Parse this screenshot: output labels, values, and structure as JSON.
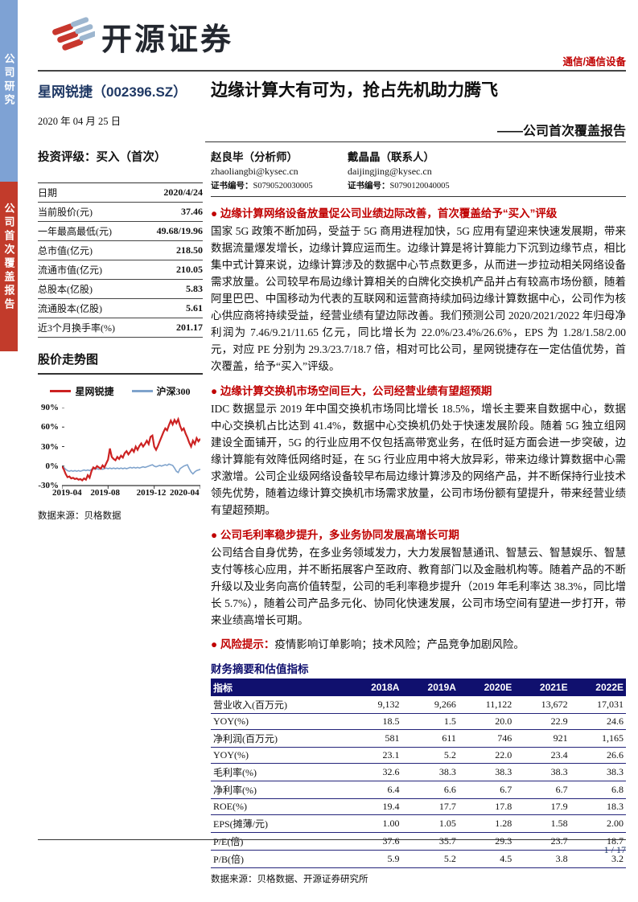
{
  "meta": {
    "sector": "通信/通信设备",
    "page": "1 / 17"
  },
  "sidebar": {
    "top": "公司研究",
    "bottom": "公司首次覆盖报告"
  },
  "logo": {
    "text": "开源证券"
  },
  "header": {
    "company": "星网锐捷（002396.SZ）",
    "date": "2020 年 04 月 25 日",
    "title": "边缘计算大有可为，抢占先机助力腾飞",
    "subtitle": "——公司首次覆盖报告"
  },
  "left": {
    "rating": "投资评级：买入（首次）",
    "stats": [
      {
        "label": "日期",
        "value": "2020/4/24"
      },
      {
        "label": "当前股价(元)",
        "value": "37.46"
      },
      {
        "label": "一年最高最低(元)",
        "value": "49.68/19.96"
      },
      {
        "label": "总市值(亿元)",
        "value": "218.50"
      },
      {
        "label": "流通市值(亿元)",
        "value": "210.05"
      },
      {
        "label": "总股本(亿股)",
        "value": "5.83"
      },
      {
        "label": "流通股本(亿股)",
        "value": "5.61"
      },
      {
        "label": "近3个月换手率(%)",
        "value": "201.17"
      }
    ],
    "chart_title": "股价走势图",
    "chart_source": "数据来源：贝格数据"
  },
  "analysts": [
    {
      "name": "赵良毕（分析师）",
      "email": "zhaoliangbi@kysec.cn",
      "cert_label": "证书编号：",
      "cert": "S0790520030005"
    },
    {
      "name": "戴晶晶（联系人）",
      "email": "daijingjing@kysec.cn",
      "cert_label": "证书编号：",
      "cert": "S0790120040005"
    }
  ],
  "sections": [
    {
      "heading": "● 边缘计算网络设备放量促公司业绩边际改善，首次覆盖给予“买入”评级",
      "body": "国家 5G 政策不断加码，受益于 5G 商用进程加快，5G 应用有望迎来快速发展期，带来数据流量爆发增长，边缘计算应运而生。边缘计算是将计算能力下沉到边缘节点，相比集中式计算来说，边缘计算涉及的数据中心节点数更多，从而进一步拉动相关网络设备需求放量。公司较早布局边缘计算相关的白牌化交换机产品并占有较高市场份额，随着阿里巴巴、中国移动为代表的互联网和运营商持续加码边缘计算数据中心，公司作为核心供应商将持续受益，经营业绩有望边际改善。我们预测公司 2020/2021/2022 年归母净利润为 7.46/9.21/11.65 亿元，同比增长为 22.0%/23.4%/26.6%，EPS 为 1.28/1.58/2.00 元，对应 PE 分别为 29.3/23.7/18.7 倍，相对可比公司，星网锐捷存在一定估值优势，首次覆盖，给予“买入”评级。"
    },
    {
      "heading": "● 边缘计算交换机市场空间巨大，公司经营业绩有望超预期",
      "body": "IDC 数据显示 2019 年中国交换机市场同比增长 18.5%，增长主要来自数据中心，数据中心交换机占比达到 41.4%，数据中心交换机仍处于快速发展阶段。随着 5G 独立组网建设全面铺开，5G 的行业应用不仅包括高带宽业务，在低时延方面会进一步突破，边缘计算能有效降低网络时延，在 5G 行业应用中将大放异彩，带来边缘计算数据中心需求激增。公司企业级网络设备较早布局边缘计算涉及的网络产品，并不断保持行业技术领先优势，随着边缘计算交换机市场需求放量，公司市场份额有望提升，带来经营业绩有望超预期。"
    },
    {
      "heading": "● 公司毛利率稳步提升，多业务协同发展高增长可期",
      "body": "公司结合自身优势，在多业务领域发力，大力发展智慧通讯、智慧云、智慧娱乐、智慧支付等核心应用，并不断拓展客户至政府、教育部门以及金融机构等。随着产品的不断升级以及业务向高价值转型，公司的毛利率稳步提升（2019 年毛利率达 38.3%，同比增长 5.7%），随着公司产品多元化、协同化快速发展，公司市场空间有望进一步打开，带来业绩高增长可期。"
    }
  ],
  "risk": {
    "label": "● 风险提示：",
    "text": "疫情影响订单影响；技术风险；产品竞争加剧风险。"
  },
  "fin": {
    "title": "财务摘要和估值指标",
    "headers": [
      "指标",
      "2018A",
      "2019A",
      "2020E",
      "2021E",
      "2022E"
    ],
    "rows": [
      [
        "营业收入(百万元)",
        "9,132",
        "9,266",
        "11,122",
        "13,672",
        "17,031"
      ],
      [
        "YOY(%)",
        "18.5",
        "1.5",
        "20.0",
        "22.9",
        "24.6"
      ],
      [
        "净利润(百万元)",
        "581",
        "611",
        "746",
        "921",
        "1,165"
      ],
      [
        "YOY(%)",
        "23.1",
        "5.2",
        "22.0",
        "23.4",
        "26.6"
      ],
      [
        "毛利率(%)",
        "32.6",
        "38.3",
        "38.3",
        "38.3",
        "38.3"
      ],
      [
        "净利率(%)",
        "6.4",
        "6.6",
        "6.7",
        "6.7",
        "6.8"
      ],
      [
        "ROE(%)",
        "19.4",
        "17.7",
        "17.8",
        "17.9",
        "18.3"
      ],
      [
        "EPS(摊薄/元)",
        "1.00",
        "1.05",
        "1.28",
        "1.58",
        "2.00"
      ],
      [
        "P/E(倍)",
        "37.6",
        "35.7",
        "29.3",
        "23.7",
        "18.7"
      ],
      [
        "P/B(倍)",
        "5.9",
        "5.2",
        "4.5",
        "3.8",
        "3.2"
      ]
    ],
    "source": "数据来源：贝格数据、开源证券研究所"
  },
  "chart_data": {
    "type": "line",
    "title": "股价走势图",
    "x_ticks": [
      "2019-04",
      "2019-08",
      "2019-12",
      "2020-04"
    ],
    "y_ticks": [
      "90%",
      "60%",
      "30%",
      "0%",
      "-30%"
    ],
    "ylim": [
      -30,
      90
    ],
    "grid": false,
    "legend_position": "top",
    "source": "贝格数据",
    "series": [
      {
        "name": "星网锐捷",
        "color": "#CC2222",
        "values": [
          0,
          -5,
          -12,
          -17,
          -16,
          -19,
          -18,
          -20,
          -19,
          -21,
          -20,
          -22,
          -19,
          -21,
          -14,
          -18,
          -8,
          -2,
          -4,
          0,
          -2,
          -4,
          1,
          -2,
          4,
          10,
          27,
          14,
          11,
          9,
          14,
          11,
          16,
          13,
          20,
          23,
          18,
          22,
          26,
          22,
          30,
          25,
          31,
          35,
          30,
          34,
          39,
          34,
          45,
          47,
          30,
          25,
          31,
          38,
          45,
          52,
          58,
          55,
          63,
          70,
          64,
          71,
          66,
          72,
          62,
          55,
          58,
          50,
          44,
          36,
          30,
          39,
          34,
          43,
          38,
          42
        ]
      },
      {
        "name": "沪深300",
        "color": "#7FA3CC",
        "values": [
          0,
          -2,
          -5,
          -7,
          -8,
          -7,
          -8,
          -7,
          -8,
          -7,
          -8,
          -7,
          -6,
          -7,
          -6,
          -7,
          -5,
          -4,
          -5,
          -4,
          -5,
          -4,
          -5,
          -4,
          -3,
          -4,
          -3,
          -4,
          -3,
          -4,
          -3,
          -4,
          -3,
          -4,
          -3,
          -4,
          -3,
          -2,
          -3,
          -2,
          -3,
          -2,
          -3,
          -2,
          -1,
          -2,
          -1,
          0,
          1,
          2,
          0,
          -1,
          0,
          1,
          0,
          1,
          2,
          1,
          3,
          2,
          1,
          -3,
          -8,
          -10,
          -4,
          -2,
          0,
          1,
          2,
          -4,
          -9,
          -12,
          -9,
          -7,
          -6,
          -5
        ]
      }
    ]
  }
}
